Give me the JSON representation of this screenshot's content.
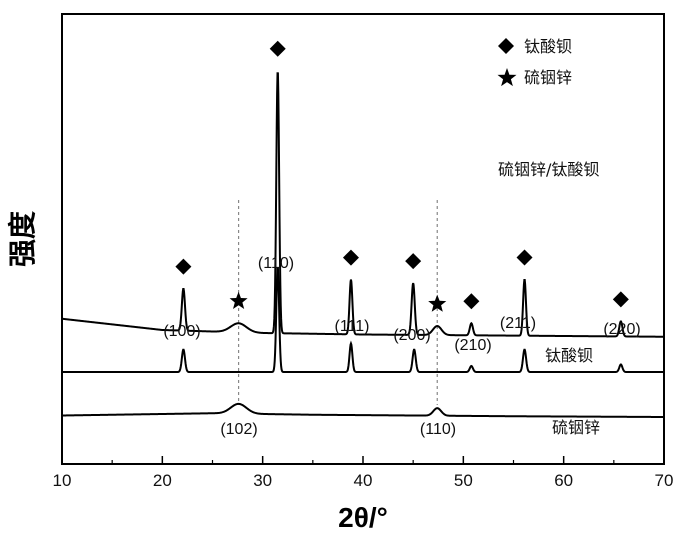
{
  "chart_data": {
    "type": "line",
    "title": "",
    "xlabel": "2θ/°",
    "ylabel": "强度",
    "xlim": [
      10,
      70
    ],
    "x_ticks": [
      "10",
      "20",
      "30",
      "40",
      "50",
      "60",
      "70"
    ],
    "y_ticks_shown": false,
    "legend": {
      "position": "top-right",
      "entries": [
        {
          "marker": "diamond",
          "label": "钛酸钡"
        },
        {
          "marker": "star",
          "label": "硫铟锌"
        }
      ]
    },
    "series": [
      {
        "name": "硫铟锌/钛酸钡",
        "baseline": [
          [
            10,
            0.71
          ],
          [
            20,
            0.56
          ],
          [
            30,
            0.52
          ],
          [
            40,
            0.5
          ],
          [
            50,
            0.49
          ],
          [
            60,
            0.48
          ],
          [
            70,
            0.47
          ]
        ],
        "peaks": [
          {
            "x": 22.1,
            "height": 0.56,
            "width": 0.22,
            "label": "◆"
          },
          {
            "x": 27.6,
            "height": 0.12,
            "width": 1.1,
            "label": "★"
          },
          {
            "x": 31.5,
            "height": 3.5,
            "width": 0.2,
            "label": "◆"
          },
          {
            "x": 38.8,
            "height": 0.73,
            "width": 0.2,
            "label": "◆"
          },
          {
            "x": 45.0,
            "height": 0.69,
            "width": 0.22,
            "label": "◆"
          },
          {
            "x": 47.4,
            "height": 0.12,
            "width": 0.6,
            "label": "★"
          },
          {
            "x": 50.8,
            "height": 0.16,
            "width": 0.22,
            "label": "◆"
          },
          {
            "x": 56.1,
            "height": 0.75,
            "width": 0.2,
            "label": "◆"
          },
          {
            "x": 65.7,
            "height": 0.2,
            "width": 0.22,
            "label": "◆"
          }
        ]
      },
      {
        "name": "钛酸钡",
        "baseline": [
          [
            10,
            0.0
          ],
          [
            70,
            0.0
          ]
        ],
        "peaks": [
          {
            "x": 22.1,
            "height": 0.3,
            "width": 0.22,
            "label": "(100)"
          },
          {
            "x": 31.5,
            "height": 1.4,
            "width": 0.2,
            "label": "(110)"
          },
          {
            "x": 38.8,
            "height": 0.38,
            "width": 0.2,
            "label": "(111)"
          },
          {
            "x": 45.1,
            "height": 0.3,
            "width": 0.22,
            "label": "(200)"
          },
          {
            "x": 50.8,
            "height": 0.08,
            "width": 0.22,
            "label": "(210)"
          },
          {
            "x": 56.1,
            "height": 0.3,
            "width": 0.22,
            "label": "(211)"
          },
          {
            "x": 65.7,
            "height": 0.1,
            "width": 0.22,
            "label": "(220)"
          }
        ]
      },
      {
        "name": "硫铟锌",
        "baseline": [
          [
            10,
            -0.58
          ],
          [
            20,
            -0.56
          ],
          [
            25,
            -0.55
          ],
          [
            35,
            -0.57
          ],
          [
            45,
            -0.58
          ],
          [
            55,
            -0.59
          ],
          [
            70,
            -0.6
          ]
        ],
        "peaks": [
          {
            "x": 27.6,
            "height": 0.13,
            "width": 1.1,
            "label": "(102)"
          },
          {
            "x": 47.4,
            "height": 0.1,
            "width": 0.55,
            "label": "(110)"
          }
        ]
      }
    ],
    "reference_lines_x": [
      27.6,
      47.4
    ]
  },
  "labels": {
    "composite": "硫铟锌/钛酸钡",
    "bto": "钛酸钡",
    "zis": "硫铟锌"
  },
  "annotations": {
    "bto_110": "(110)",
    "bto_100": "(100)",
    "bto_111": "(111)",
    "bto_200": "(200)",
    "bto_210": "(210)",
    "bto_211": "(211)",
    "bto_220": "(220)",
    "zis_102": "(102)",
    "zis_110": "(110)"
  },
  "colors": {
    "line": "#000000",
    "reference": "#888888"
  }
}
